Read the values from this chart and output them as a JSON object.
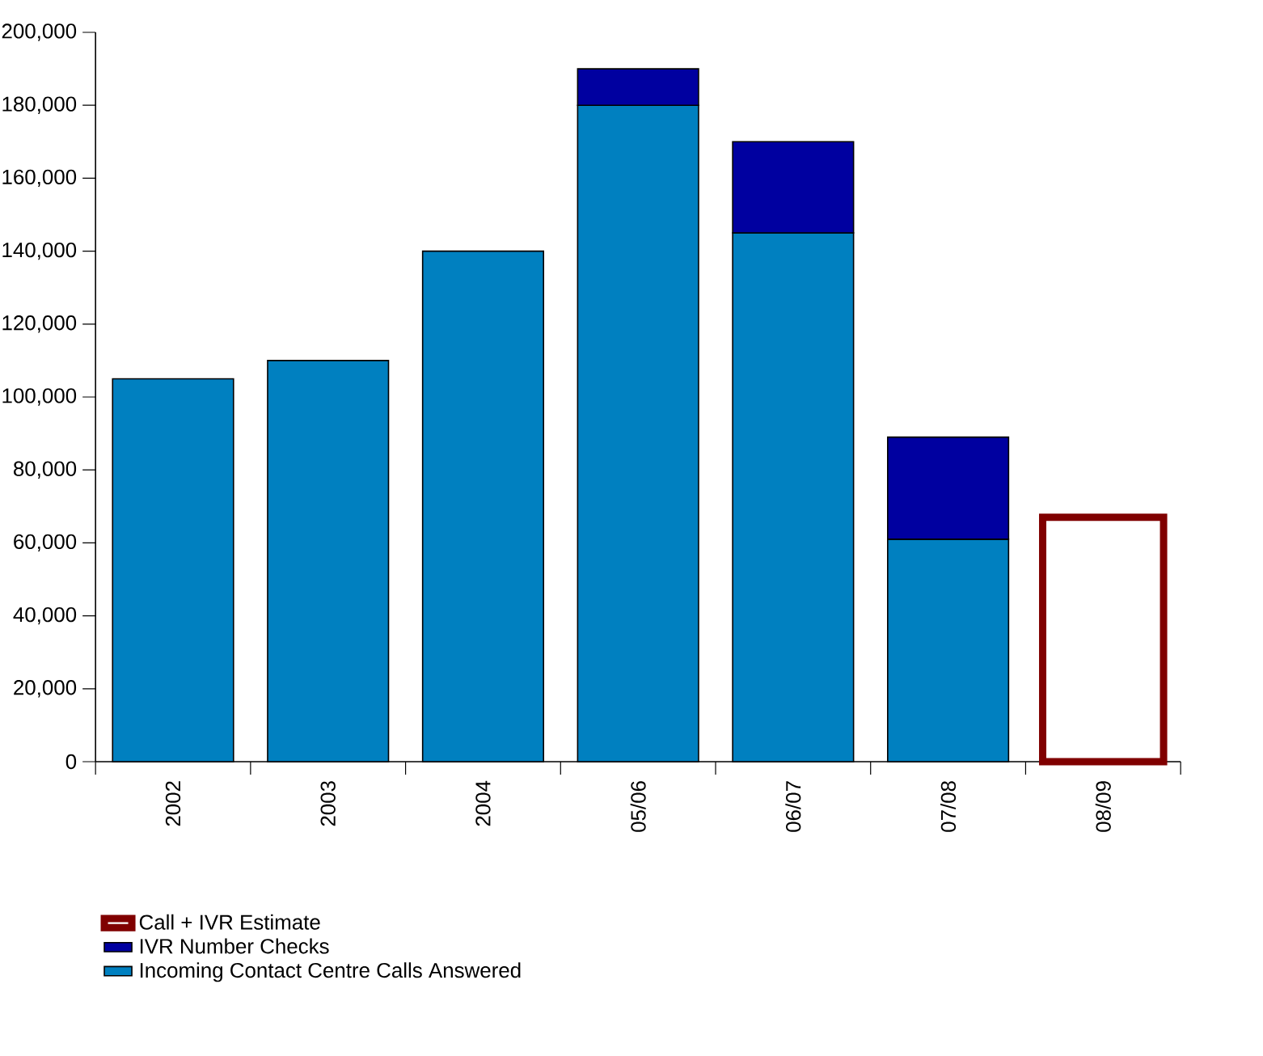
{
  "chart_data": {
    "type": "bar",
    "stacked": true,
    "legend": "bottom",
    "categories": [
      "2002",
      "2003",
      "2004",
      "05/06",
      "06/07",
      "07/08",
      "08/09"
    ],
    "series": [
      {
        "name": "Incoming Contact Centre Calls Answered",
        "color": "#0080c0",
        "values": [
          105000,
          110000,
          140000,
          180000,
          145000,
          61000,
          null
        ]
      },
      {
        "name": "IVR Number Checks",
        "color": "#0000a0",
        "values": [
          null,
          null,
          null,
          10000,
          25000,
          28000,
          null
        ]
      },
      {
        "name": "Call + IVR Estimate",
        "color": "#800000",
        "values": [
          null,
          null,
          null,
          null,
          null,
          null,
          67000
        ]
      }
    ],
    "ylim": [
      0,
      200000
    ],
    "yticks": [
      0,
      {
        "value": 20000,
        "label": "20,000"
      },
      {
        "value": 40000,
        "label": "40,000"
      },
      {
        "value": 60000,
        "label": "60,000"
      },
      {
        "value": 80000,
        "label": "80,000"
      },
      {
        "value": 100000,
        "label": "100,000"
      },
      {
        "value": 120000,
        "label": "120,000"
      },
      {
        "value": 140000,
        "label": "140,000"
      },
      {
        "value": 160000,
        "label": "160,000"
      },
      {
        "value": 180000,
        "label": "180,000"
      },
      {
        "value": 200000,
        "label": "200,000"
      }
    ]
  }
}
